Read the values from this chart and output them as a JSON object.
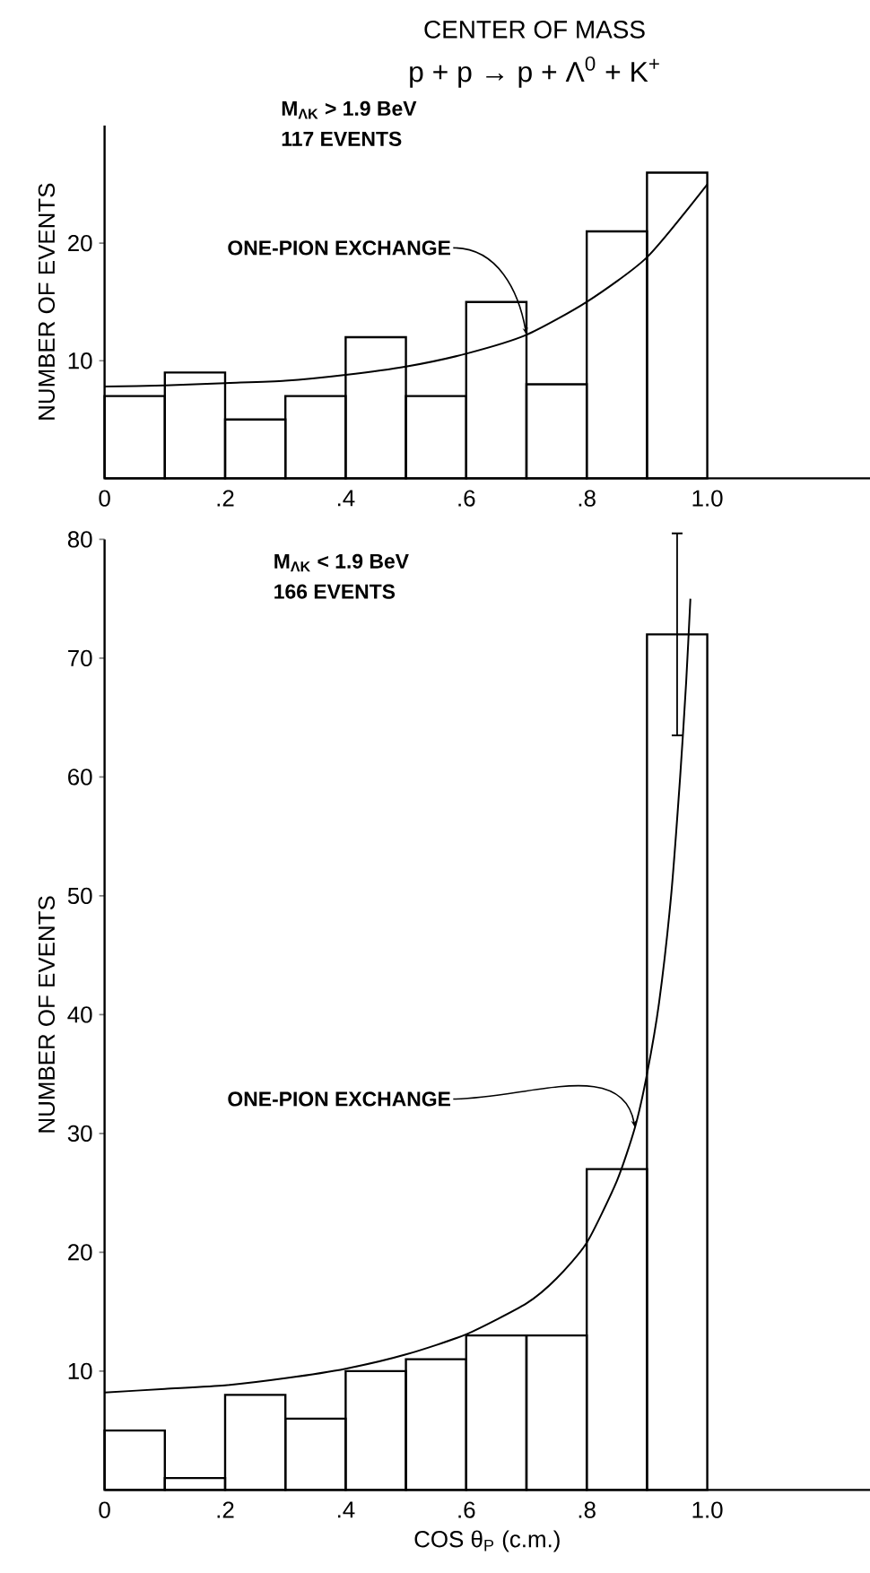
{
  "chart_data": [
    {
      "type": "histogram",
      "title": "CENTER OF MASS",
      "subtitle": "p + p → p + Λ$^{0}$ + K$^{+}$",
      "ylabel": "NUMBER OF EVENTS",
      "annotations": [
        "M$_{ΛK}$ > 1.9 BeV",
        "117 EVENTS"
      ],
      "xlim": [
        0,
        1.27
      ],
      "ylim": [
        0,
        30
      ],
      "xticks": [
        0,
        {
          "value": 0.2,
          "label": ".2"
        },
        {
          "value": 0.4,
          "label": ".4"
        },
        {
          "value": 0.6,
          "label": ".6"
        },
        {
          "value": 0.8,
          "label": ".8"
        },
        {
          "value": 1.0,
          "label": "1.0"
        }
      ],
      "yticks": [
        10,
        20
      ],
      "legend": false,
      "series": [
        {
          "color": "#000000",
          "bins": [
            0,
            0.1,
            0.2,
            0.3,
            0.4,
            0.5,
            0.6,
            0.7,
            0.8,
            0.9,
            1.0
          ],
          "values": [
            7,
            9,
            5,
            7,
            12,
            7,
            15,
            8,
            21,
            26
          ]
        },
        {
          "type": "line",
          "name": "ONE-PION EXCHANGE",
          "color": "#000000",
          "x": [
            0,
            0.1,
            0.2,
            0.3,
            0.4,
            0.5,
            0.6,
            0.7,
            0.8,
            0.9,
            1.0
          ],
          "values": [
            7.8,
            7.9,
            8.1,
            8.3,
            8.8,
            9.5,
            10.6,
            12.2,
            15.0,
            18.8,
            25.0
          ]
        }
      ]
    },
    {
      "type": "histogram",
      "xlabel": "COS θ$_{P}$ (c.m.)",
      "ylabel": "NUMBER OF EVENTS",
      "annotations": [
        "M$_{ΛK}$ < 1.9 BeV",
        "166 EVENTS"
      ],
      "xlim": [
        0,
        1.27
      ],
      "ylim": [
        0,
        80
      ],
      "xticks": [
        0,
        {
          "value": 0.2,
          "label": ".2"
        },
        {
          "value": 0.4,
          "label": ".4"
        },
        {
          "value": 0.6,
          "label": ".6"
        },
        {
          "value": 0.8,
          "label": ".8"
        },
        {
          "value": 1.0,
          "label": "1.0"
        }
      ],
      "yticks": [
        10,
        20,
        30,
        40,
        50,
        60,
        70,
        80
      ],
      "legend": false,
      "series": [
        {
          "color": "#000000",
          "bins": [
            0,
            0.1,
            0.2,
            0.3,
            0.4,
            0.5,
            0.6,
            0.7,
            0.8,
            0.9,
            1.0
          ],
          "values": [
            5,
            1,
            8,
            6,
            10,
            11,
            13,
            13,
            27,
            72
          ],
          "errors": [
            null,
            null,
            null,
            null,
            null,
            null,
            null,
            null,
            null,
            8.5
          ]
        },
        {
          "type": "line",
          "name": "ONE-PION EXCHANGE",
          "color": "#000000",
          "x": [
            0,
            0.1,
            0.2,
            0.3,
            0.4,
            0.5,
            0.6,
            0.7,
            0.75,
            0.8,
            0.85,
            0.88,
            0.9,
            0.92,
            0.94,
            0.955,
            0.965,
            0.972
          ],
          "values": [
            8.2,
            8.5,
            8.8,
            9.4,
            10.2,
            11.4,
            13.1,
            15.7,
            17.8,
            20.8,
            26,
            30.5,
            35,
            41,
            50,
            60,
            68,
            75
          ]
        }
      ]
    }
  ]
}
